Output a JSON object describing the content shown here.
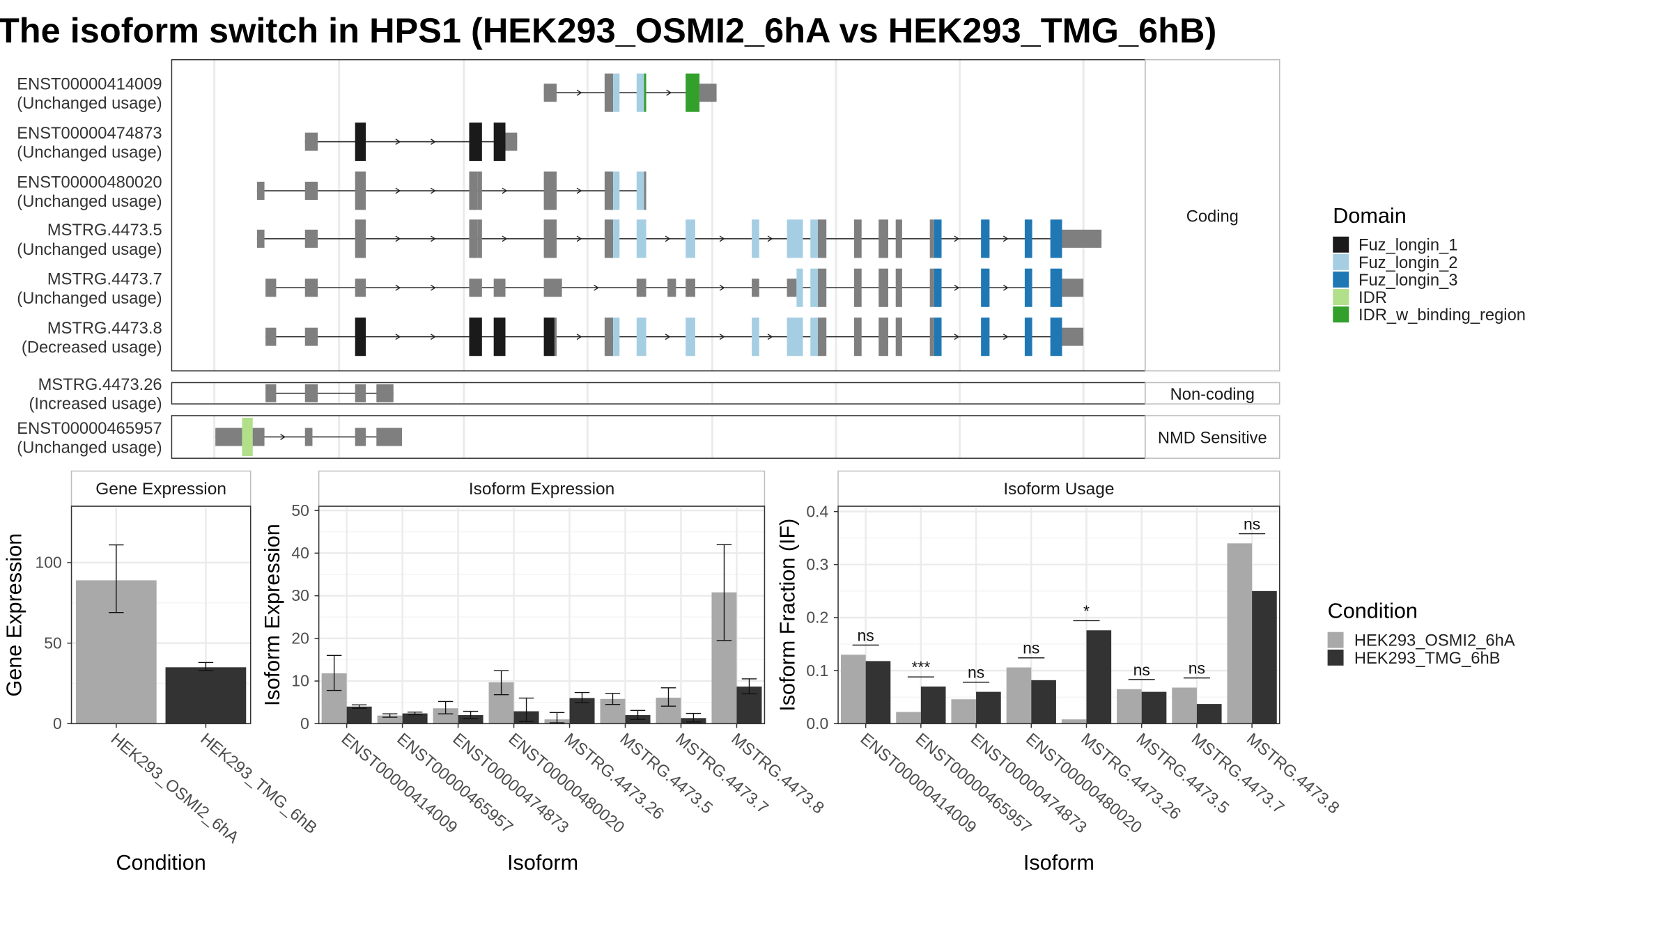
{
  "title": "The isoform switch in HPS1 (HEK293_OSMI2_6hA vs HEK293_TMG_6hB)",
  "transcript_plot": {
    "type": "gene-structure",
    "groups": [
      {
        "label": "Coding",
        "transcripts": [
          {
            "id": "ENST00000414009",
            "usage": "(Unchanged usage)"
          },
          {
            "id": "ENST00000474873",
            "usage": "(Unchanged usage)"
          },
          {
            "id": "ENST00000480020",
            "usage": "(Unchanged usage)"
          },
          {
            "id": "MSTRG.4473.5",
            "usage": "(Unchanged usage)"
          },
          {
            "id": "MSTRG.4473.7",
            "usage": "(Unchanged usage)"
          },
          {
            "id": "MSTRG.4473.8",
            "usage": "(Decreased usage)"
          }
        ]
      },
      {
        "label": "Non-coding",
        "transcripts": [
          {
            "id": "MSTRG.4473.26",
            "usage": "(Increased usage)"
          }
        ]
      },
      {
        "label": "NMD Sensitive",
        "transcripts": [
          {
            "id": "ENST00000465957",
            "usage": "(Unchanged usage)"
          }
        ]
      }
    ],
    "legend": {
      "title": "Domain",
      "items": [
        {
          "label": "Fuz_longin_1",
          "color": "#1a1a1a"
        },
        {
          "label": "Fuz_longin_2",
          "color": "#a6cee3"
        },
        {
          "label": "Fuz_longin_3",
          "color": "#1f78b4"
        },
        {
          "label": "IDR",
          "color": "#b2df8a"
        },
        {
          "label": "IDR_w_binding_region",
          "color": "#33a02c"
        }
      ]
    }
  },
  "chart_data": [
    {
      "type": "bar",
      "title": "Gene Expression",
      "xlabel": "Condition",
      "ylabel": "Gene Expression",
      "ylim": [
        0,
        135
      ],
      "yticks": [
        0,
        50,
        100
      ],
      "categories": [
        "HEK293_OSMI2_6hA",
        "HEK293_TMG_6hB"
      ],
      "values": [
        89,
        35
      ],
      "error_low": [
        69,
        33
      ],
      "error_high": [
        111,
        38
      ]
    },
    {
      "type": "bar",
      "title": "Isoform Expression",
      "xlabel": "Isoform",
      "ylabel": "Isoform Expression",
      "ylim": [
        0,
        51
      ],
      "yticks": [
        0,
        10,
        20,
        30,
        40,
        50
      ],
      "categories": [
        "ENST00000414009",
        "ENST00000465957",
        "ENST00000474873",
        "ENST00000480020",
        "MSTRG.4473.26",
        "MSTRG.4473.5",
        "MSTRG.4473.7",
        "MSTRG.4473.8"
      ],
      "series": [
        {
          "name": "HEK293_OSMI2_6hA",
          "values": [
            11.8,
            1.9,
            3.6,
            9.7,
            1.0,
            5.8,
            6.1,
            30.8
          ],
          "error_low": [
            7.8,
            1.5,
            2.3,
            6.8,
            0.2,
            4.5,
            4.1,
            19.5
          ],
          "error_high": [
            16.0,
            2.3,
            5.2,
            12.4,
            2.6,
            7.1,
            8.4,
            42.0
          ]
        },
        {
          "name": "HEK293_TMG_6hB",
          "values": [
            4.0,
            2.4,
            2.0,
            2.9,
            6.0,
            2.0,
            1.3,
            8.7
          ],
          "error_low": [
            3.6,
            2.1,
            1.2,
            0.5,
            4.9,
            1.0,
            0.4,
            7.0
          ],
          "error_high": [
            4.4,
            2.7,
            2.9,
            6.0,
            7.3,
            3.1,
            2.4,
            10.5
          ]
        }
      ]
    },
    {
      "type": "bar",
      "title": "Isoform Usage",
      "xlabel": "Isoform",
      "ylabel": "Isoform Fraction (IF)",
      "ylim": [
        0,
        0.41
      ],
      "yticks": [
        0.0,
        0.1,
        0.2,
        0.3,
        0.4
      ],
      "categories": [
        "ENST00000414009",
        "ENST00000465957",
        "ENST00000474873",
        "ENST00000480020",
        "MSTRG.4473.26",
        "MSTRG.4473.5",
        "MSTRG.4473.7",
        "MSTRG.4473.8"
      ],
      "series": [
        {
          "name": "HEK293_OSMI2_6hA",
          "values": [
            0.13,
            0.022,
            0.046,
            0.106,
            0.008,
            0.065,
            0.068,
            0.34
          ]
        },
        {
          "name": "HEK293_TMG_6hB",
          "values": [
            0.118,
            0.07,
            0.06,
            0.082,
            0.176,
            0.06,
            0.037,
            0.25
          ]
        }
      ],
      "significance": [
        "ns",
        "***",
        "ns",
        "ns",
        "*",
        "ns",
        "ns",
        "ns"
      ]
    }
  ],
  "condition_legend": {
    "title": "Condition",
    "items": [
      {
        "label": "HEK293_OSMI2_6hA",
        "color": "#a9a9a9"
      },
      {
        "label": "HEK293_TMG_6hB",
        "color": "#333333"
      }
    ]
  }
}
